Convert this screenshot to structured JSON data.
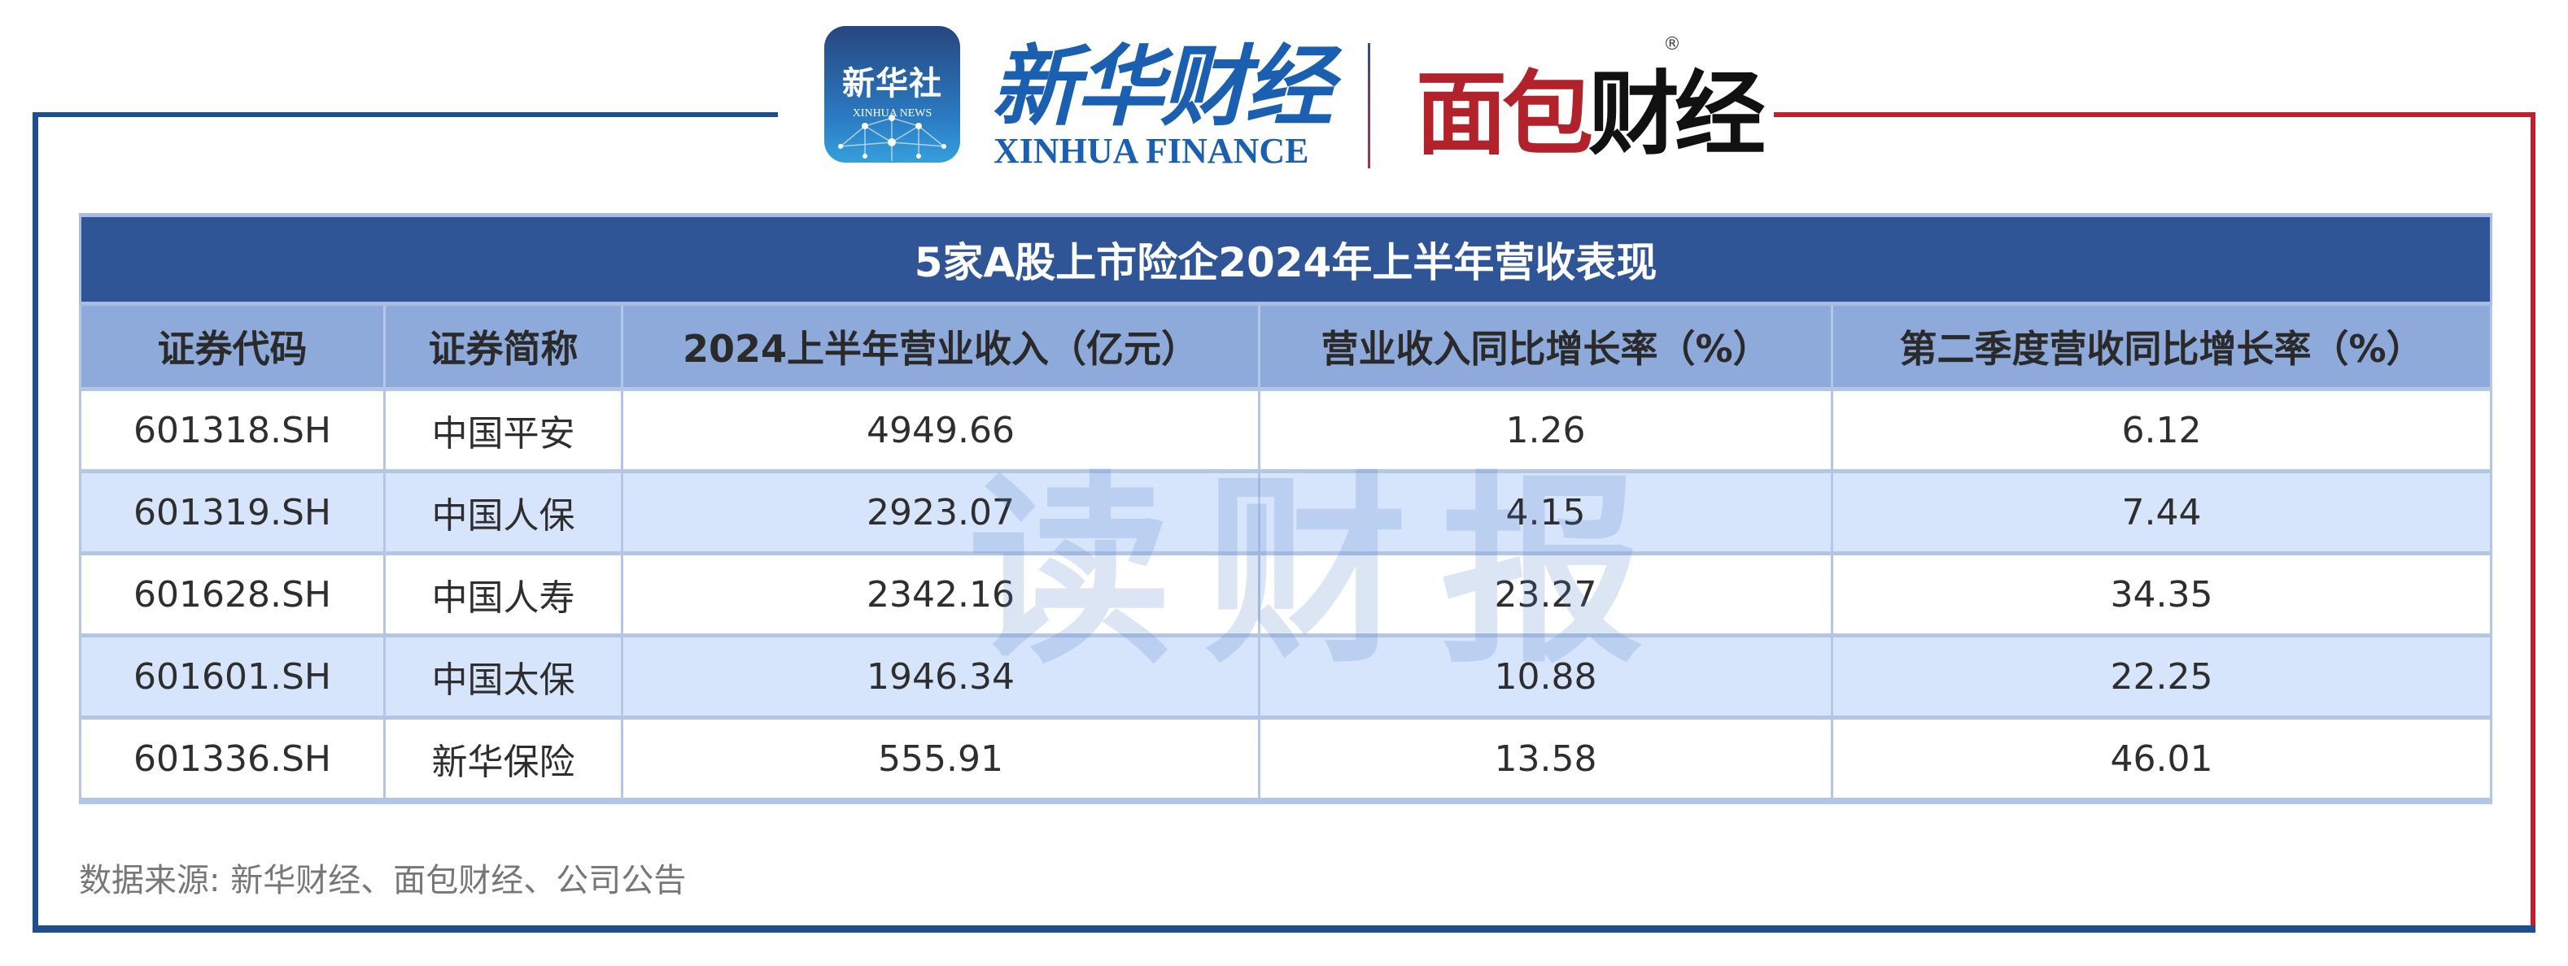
{
  "logos": {
    "xinhua_news_cn": "新华社",
    "xinhua_news_en": "XINHUA NEWS",
    "xinhua_finance_cn": "新华财经",
    "xinhua_finance_en": "XINHUA FINANCE",
    "miandian_red": "面包",
    "miandian_black": "财经",
    "registered_mark": "®"
  },
  "table": {
    "title": "5家A股上市险企2024年上半年营收表现",
    "columns": [
      "证券代码",
      "证券简称",
      "2024上半年营业收入（亿元）",
      "营业收入同比增长率（%）",
      "第二季度营收同比增长率（%）"
    ],
    "rows": [
      [
        "601318.SH",
        "中国平安",
        "4949.66",
        "1.26",
        "6.12"
      ],
      [
        "601319.SH",
        "中国人保",
        "2923.07",
        "4.15",
        "7.44"
      ],
      [
        "601628.SH",
        "中国人寿",
        "2342.16",
        "23.27",
        "34.35"
      ],
      [
        "601601.SH",
        "中国太保",
        "1946.34",
        "10.88",
        "22.25"
      ],
      [
        "601336.SH",
        "新华保险",
        "555.91",
        "13.58",
        "46.01"
      ]
    ]
  },
  "watermark": "读财报",
  "source": "数据来源: 新华财经、面包财经、公司公告",
  "colors": {
    "title_bg": "#2f5597",
    "header_bg": "#8eaadb",
    "alt_row": "#d6e4fc",
    "frame_blue": "#1f4e8c",
    "frame_red": "#c0202e"
  }
}
